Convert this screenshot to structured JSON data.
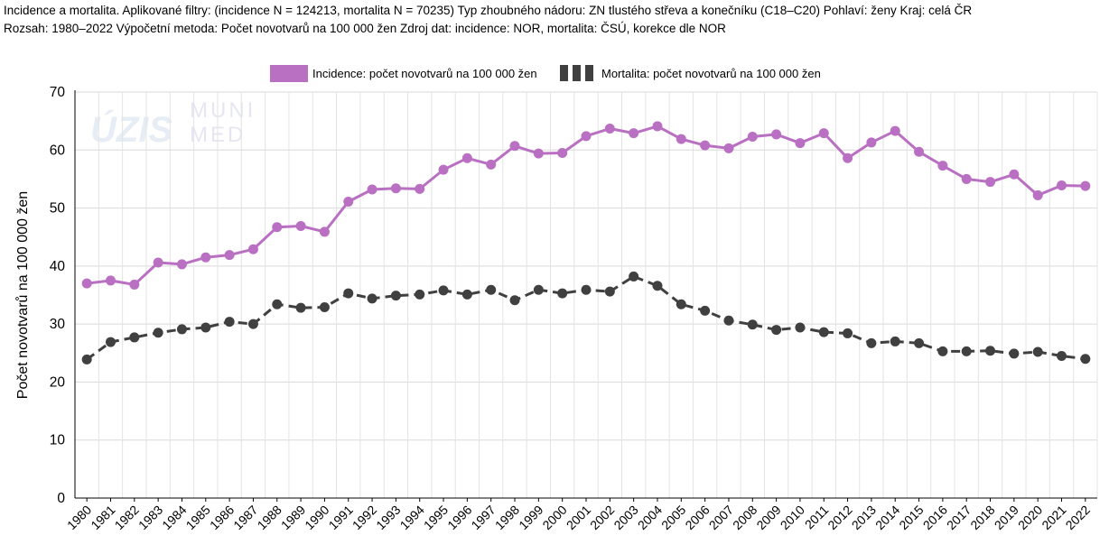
{
  "caption": {
    "line1": "Incidence a mortalita. Aplikované filtry: (incidence N = 124213, mortalita N = 70235) Typ zhoubného nádoru: ZN tlustého střeva a konečníku (C18–C20) Pohlaví: ženy Kraj: celá ČR",
    "line2": "Rozsah: 1980–2022 Výpočetní metoda: Počet novotvarů na 100 000 žen Zdroj dat: incidence: NOR, mortalita: ČSÚ, korekce dle NOR"
  },
  "watermark": {
    "logo1": "ÚZIS",
    "logo2_line1": "MUNI",
    "logo2_line2": "MED"
  },
  "chart_data": {
    "type": "line",
    "ylabel": "Počet novotvarů na 100 000 žen",
    "ylim": [
      0,
      70
    ],
    "yticks": [
      0,
      10,
      20,
      30,
      40,
      50,
      60,
      70
    ],
    "grid": true,
    "legend_position": "top-center",
    "x": [
      "1980",
      "1981",
      "1982",
      "1983",
      "1984",
      "1985",
      "1986",
      "1987",
      "1988",
      "1989",
      "1990",
      "1991",
      "1992",
      "1993",
      "1994",
      "1995",
      "1996",
      "1997",
      "1998",
      "1999",
      "2000",
      "2001",
      "2002",
      "2003",
      "2004",
      "2005",
      "2006",
      "2007",
      "2008",
      "2009",
      "2010",
      "2011",
      "2012",
      "2013",
      "2014",
      "2015",
      "2016",
      "2017",
      "2018",
      "2019",
      "2020",
      "2021",
      "2022"
    ],
    "series": [
      {
        "name": "Incidence: počet novotvarů na 100 000 žen",
        "color": "#b96fc2",
        "style": "solid",
        "values": [
          37.0,
          37.5,
          36.8,
          40.6,
          40.3,
          41.5,
          41.9,
          42.9,
          46.7,
          46.9,
          45.9,
          51.1,
          53.2,
          53.4,
          53.3,
          56.6,
          58.6,
          57.5,
          60.7,
          59.4,
          59.5,
          62.4,
          63.7,
          62.9,
          64.1,
          61.9,
          60.8,
          60.3,
          62.3,
          62.7,
          61.2,
          62.9,
          58.6,
          61.3,
          63.3,
          59.7,
          57.3,
          55.0,
          54.5,
          55.8,
          52.2,
          53.9,
          53.8
        ]
      },
      {
        "name": "Mortalita: počet novotvarů na 100 000 žen",
        "color": "#404040",
        "style": "dashed",
        "values": [
          23.9,
          26.9,
          27.7,
          28.5,
          29.1,
          29.4,
          30.4,
          30.0,
          33.4,
          32.8,
          32.9,
          35.3,
          34.4,
          34.9,
          35.1,
          35.8,
          35.1,
          35.9,
          34.1,
          35.9,
          35.3,
          35.9,
          35.6,
          38.2,
          36.6,
          33.4,
          32.3,
          30.6,
          29.9,
          29.0,
          29.4,
          28.6,
          28.4,
          26.7,
          27.0,
          26.7,
          25.3,
          25.3,
          25.4,
          24.9,
          25.2,
          24.5,
          24.0
        ]
      }
    ]
  }
}
